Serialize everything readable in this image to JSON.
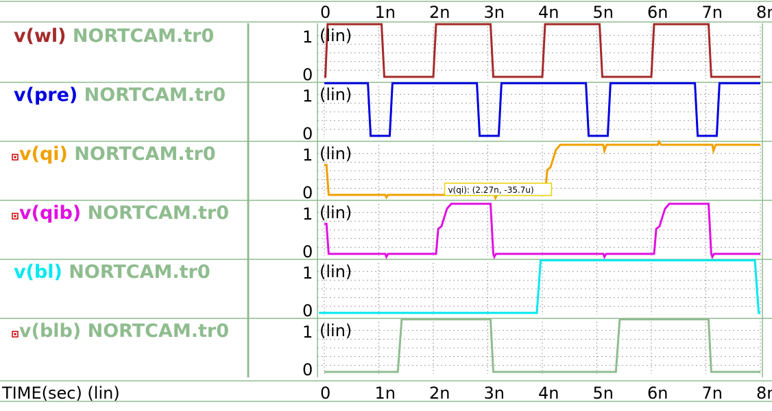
{
  "chart_data": {
    "type": "line",
    "x_label": "TIME(sec) (lin)",
    "x_unit": "s",
    "x_range": [
      0,
      8e-09
    ],
    "x_ticks": [
      "0",
      "1n",
      "2n",
      "3n",
      "4n",
      "5n",
      "6n",
      "7n",
      "8n"
    ],
    "y_scale_label": "(lin)",
    "y_ticks": [
      "0",
      "1"
    ],
    "grid": true,
    "panels": [
      {
        "signal": "v(wl)",
        "source": "NORTCAM.tr0",
        "color": "#a52a2a",
        "marker": false,
        "points": [
          [
            0,
            0
          ],
          [
            0.02,
            0
          ],
          [
            0.06,
            1.05
          ],
          [
            1.05,
            1.05
          ],
          [
            1.1,
            0
          ],
          [
            2.0,
            0
          ],
          [
            2.05,
            1.05
          ],
          [
            3.05,
            1.05
          ],
          [
            3.1,
            0
          ],
          [
            4.0,
            0
          ],
          [
            4.05,
            1.05
          ],
          [
            5.05,
            1.05
          ],
          [
            5.1,
            0
          ],
          [
            6.0,
            0
          ],
          [
            6.05,
            1.05
          ],
          [
            7.05,
            1.05
          ],
          [
            7.1,
            0
          ],
          [
            8.0,
            0
          ]
        ]
      },
      {
        "signal": "v(pre)",
        "source": "NORTCAM.tr0",
        "color": "#0000e0",
        "marker": false,
        "points": [
          [
            0,
            1.05
          ],
          [
            0.8,
            1.05
          ],
          [
            0.85,
            0
          ],
          [
            1.2,
            0
          ],
          [
            1.25,
            1.05
          ],
          [
            2.8,
            1.05
          ],
          [
            2.85,
            0
          ],
          [
            3.2,
            0
          ],
          [
            3.25,
            1.05
          ],
          [
            4.8,
            1.05
          ],
          [
            4.85,
            0
          ],
          [
            5.2,
            0
          ],
          [
            5.25,
            1.05
          ],
          [
            6.8,
            1.05
          ],
          [
            6.85,
            0
          ],
          [
            7.2,
            0
          ],
          [
            7.25,
            1.05
          ],
          [
            8.0,
            1.05
          ]
        ]
      },
      {
        "signal": "v(qi)",
        "source": "NORTCAM.tr0",
        "color": "#f0a000",
        "marker": true,
        "points": [
          [
            0,
            0.6
          ],
          [
            0.04,
            0.6
          ],
          [
            0.08,
            0
          ],
          [
            1.12,
            0
          ],
          [
            1.14,
            -0.05
          ],
          [
            1.17,
            0
          ],
          [
            3.12,
            0
          ],
          [
            3.14,
            -0.06
          ],
          [
            3.17,
            0
          ],
          [
            4.05,
            0
          ],
          [
            4.09,
            0.5
          ],
          [
            4.15,
            0.55
          ],
          [
            4.25,
            0.9
          ],
          [
            4.33,
            1.0
          ],
          [
            5.12,
            1.0
          ],
          [
            5.14,
            0.88
          ],
          [
            5.18,
            1.0
          ],
          [
            6.12,
            1.0
          ],
          [
            6.14,
            1.06
          ],
          [
            6.18,
            1.0
          ],
          [
            7.12,
            1.0
          ],
          [
            7.14,
            0.88
          ],
          [
            7.18,
            1.0
          ],
          [
            8.0,
            1.0
          ]
        ]
      },
      {
        "signal": "v(qib)",
        "source": "NORTCAM.tr0",
        "color": "#e010e0",
        "marker": true,
        "points": [
          [
            0,
            0.6
          ],
          [
            0.04,
            0.6
          ],
          [
            0.08,
            0
          ],
          [
            1.12,
            0
          ],
          [
            1.14,
            -0.06
          ],
          [
            1.17,
            0
          ],
          [
            2.05,
            0
          ],
          [
            2.09,
            0.5
          ],
          [
            2.15,
            0.55
          ],
          [
            2.25,
            0.9
          ],
          [
            2.33,
            1.0
          ],
          [
            3.05,
            1.0
          ],
          [
            3.1,
            0
          ],
          [
            3.12,
            -0.06
          ],
          [
            3.15,
            0
          ],
          [
            5.12,
            0
          ],
          [
            5.14,
            -0.06
          ],
          [
            5.17,
            0
          ],
          [
            6.05,
            0
          ],
          [
            6.09,
            0.5
          ],
          [
            6.15,
            0.55
          ],
          [
            6.25,
            0.9
          ],
          [
            6.33,
            1.0
          ],
          [
            7.05,
            1.0
          ],
          [
            7.1,
            0
          ],
          [
            7.12,
            -0.06
          ],
          [
            7.15,
            0
          ],
          [
            8.0,
            0
          ]
        ]
      },
      {
        "signal": "v(bl)",
        "source": "NORTCAM.tr0",
        "color": "#00e8f0",
        "marker": false,
        "points": [
          [
            -0.1,
            0
          ],
          [
            3.9,
            0
          ],
          [
            3.97,
            1.05
          ],
          [
            7.9,
            1.05
          ],
          [
            7.97,
            0
          ],
          [
            8.0,
            0
          ]
        ]
      },
      {
        "signal": "v(blb)",
        "source": "NORTCAM.tr0",
        "color": "#8fbc8f",
        "marker": true,
        "points": [
          [
            0,
            0
          ],
          [
            1.35,
            0
          ],
          [
            1.42,
            1.05
          ],
          [
            3.05,
            1.05
          ],
          [
            3.1,
            0
          ],
          [
            5.35,
            0
          ],
          [
            5.42,
            1.05
          ],
          [
            7.05,
            1.05
          ],
          [
            7.1,
            0
          ],
          [
            8.0,
            0
          ]
        ]
      }
    ],
    "cursor_annotation": {
      "text": "v(qi): (2.27n, -35.7u)",
      "signal": "v(qi)",
      "x": 2.27e-09,
      "y": -3.57e-05
    }
  },
  "colors": {
    "source_label": "#8fbc8f",
    "marker_fill": "#cc0000",
    "grid": "#a0a0a0",
    "border": "#8fbc8f"
  }
}
